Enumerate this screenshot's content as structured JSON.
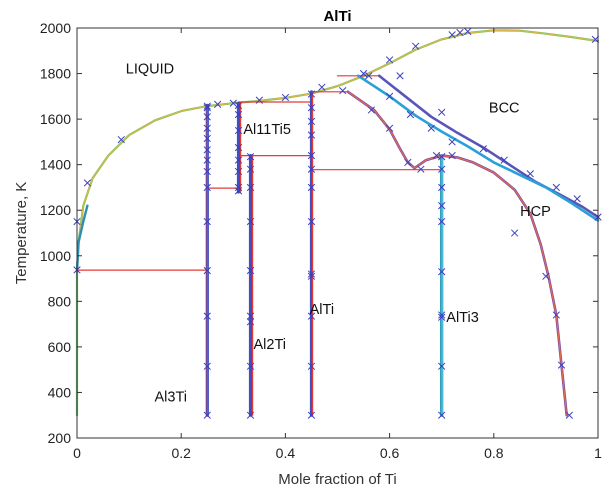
{
  "chart_data": {
    "type": "line",
    "title": "AlTi",
    "xlabel": "Mole fraction of Ti",
    "ylabel": "Temperature, K",
    "xlim": [
      0,
      1
    ],
    "ylim": [
      200,
      2000
    ],
    "xticks": [
      "0",
      "0.2",
      "0.4",
      "0.6",
      "0.8",
      "1"
    ],
    "yticks": [
      "200",
      "400",
      "600",
      "800",
      "1000",
      "1200",
      "1400",
      "1600",
      "1800",
      "2000"
    ],
    "grid": false,
    "region_labels": [
      {
        "text": "LIQUID",
        "x": 0.14,
        "y": 1800
      },
      {
        "text": "BCC",
        "x": 0.82,
        "y": 1630
      },
      {
        "text": "HCP",
        "x": 0.88,
        "y": 1175
      },
      {
        "text": "AlTi3",
        "x": 0.74,
        "y": 710
      },
      {
        "text": "AlTi",
        "x": 0.47,
        "y": 745
      },
      {
        "text": "Al2Ti",
        "x": 0.37,
        "y": 590
      },
      {
        "text": "Al3Ti",
        "x": 0.18,
        "y": 360
      },
      {
        "text": "Al11Ti5",
        "x": 0.365,
        "y": 1535
      }
    ],
    "series": [
      {
        "color": "#7dbf5a",
        "width": 2.2,
        "points": [
          [
            0.0,
            933
          ],
          [
            0.003,
            1060
          ],
          [
            0.012,
            1220
          ],
          [
            0.03,
            1340
          ],
          [
            0.06,
            1440
          ],
          [
            0.1,
            1530
          ],
          [
            0.15,
            1595
          ],
          [
            0.2,
            1635
          ],
          [
            0.25,
            1657
          ],
          [
            0.3,
            1670
          ],
          [
            0.35,
            1680
          ],
          [
            0.4,
            1693
          ],
          [
            0.45,
            1712
          ],
          [
            0.5,
            1745
          ],
          [
            0.55,
            1790
          ],
          [
            0.6,
            1845
          ],
          [
            0.65,
            1905
          ],
          [
            0.7,
            1950
          ],
          [
            0.75,
            1978
          ],
          [
            0.8,
            1990
          ],
          [
            0.85,
            1988
          ],
          [
            0.9,
            1975
          ],
          [
            0.95,
            1960
          ],
          [
            1.0,
            1943
          ]
        ]
      },
      {
        "color": "#d8b84a",
        "width": 1.2,
        "points": [
          [
            0.0,
            933
          ],
          [
            0.003,
            1060
          ],
          [
            0.012,
            1220
          ],
          [
            0.03,
            1340
          ],
          [
            0.06,
            1440
          ],
          [
            0.1,
            1530
          ],
          [
            0.15,
            1595
          ],
          [
            0.2,
            1635
          ],
          [
            0.25,
            1657
          ],
          [
            0.3,
            1670
          ],
          [
            0.35,
            1680
          ],
          [
            0.4,
            1693
          ],
          [
            0.45,
            1712
          ],
          [
            0.5,
            1745
          ],
          [
            0.55,
            1790
          ],
          [
            0.6,
            1845
          ],
          [
            0.65,
            1905
          ],
          [
            0.7,
            1950
          ],
          [
            0.75,
            1978
          ],
          [
            0.8,
            1990
          ],
          [
            0.85,
            1988
          ],
          [
            0.9,
            1975
          ],
          [
            0.95,
            1960
          ],
          [
            1.0,
            1943
          ]
        ]
      },
      {
        "color": "#6cc070",
        "width": 2.2,
        "points": [
          [
            0.0,
            300
          ],
          [
            0.0,
            933
          ]
        ]
      },
      {
        "color": "#2e8fb0",
        "width": 2.4,
        "points": [
          [
            0.0,
            930
          ],
          [
            0.003,
            1060
          ],
          [
            0.012,
            1150
          ],
          [
            0.02,
            1220
          ]
        ]
      },
      {
        "color": "#e53935",
        "width": 1.2,
        "points": [
          [
            0.0,
            937
          ],
          [
            0.25,
            937
          ]
        ]
      },
      {
        "color": "#e53935",
        "width": 1.2,
        "points": [
          [
            0.25,
            1297
          ],
          [
            0.31,
            1297
          ]
        ]
      },
      {
        "color": "#e53935",
        "width": 1.2,
        "points": [
          [
            0.312,
            1440
          ],
          [
            0.45,
            1440
          ]
        ]
      },
      {
        "color": "#e53935",
        "width": 1.2,
        "points": [
          [
            0.31,
            1675
          ],
          [
            0.45,
            1675
          ]
        ]
      },
      {
        "color": "#e53935",
        "width": 1.2,
        "points": [
          [
            0.45,
            1720
          ],
          [
            0.52,
            1720
          ]
        ]
      },
      {
        "color": "#e53935",
        "width": 1.2,
        "points": [
          [
            0.45,
            1378
          ],
          [
            0.7,
            1378
          ]
        ]
      },
      {
        "color": "#e53935",
        "width": 1.2,
        "points": [
          [
            0.5,
            1790
          ],
          [
            0.58,
            1790
          ]
        ]
      },
      {
        "color": "#3f4fbf",
        "width": 3.2,
        "points": [
          [
            0.25,
            300
          ],
          [
            0.25,
            1660
          ]
        ]
      },
      {
        "color": "#e53935",
        "width": 1.2,
        "points": [
          [
            0.25,
            300
          ],
          [
            0.25,
            1660
          ]
        ]
      },
      {
        "color": "#3f4fbf",
        "width": 3.2,
        "points": [
          [
            0.31,
            1280
          ],
          [
            0.31,
            1670
          ]
        ]
      },
      {
        "color": "#e53935",
        "width": 1.2,
        "points": [
          [
            0.314,
            1280
          ],
          [
            0.314,
            1670
          ]
        ]
      },
      {
        "color": "#3f4fbf",
        "width": 3.2,
        "points": [
          [
            0.333,
            300
          ],
          [
            0.333,
            1440
          ]
        ]
      },
      {
        "color": "#e53935",
        "width": 1.2,
        "points": [
          [
            0.337,
            300
          ],
          [
            0.337,
            1440
          ]
        ]
      },
      {
        "color": "#3f4fbf",
        "width": 3.2,
        "points": [
          [
            0.45,
            300
          ],
          [
            0.45,
            1720
          ]
        ]
      },
      {
        "color": "#e53935",
        "width": 1.2,
        "points": [
          [
            0.452,
            300
          ],
          [
            0.452,
            1720
          ]
        ]
      },
      {
        "color": "#4fb8d4",
        "width": 3.4,
        "points": [
          [
            0.7,
            300
          ],
          [
            0.7,
            1438
          ]
        ]
      },
      {
        "color": "#2a9db8",
        "width": 1.2,
        "points": [
          [
            0.698,
            300
          ],
          [
            0.698,
            1438
          ]
        ]
      },
      {
        "color": "#7a4fa6",
        "width": 2.6,
        "points": [
          [
            0.52,
            1720
          ],
          [
            0.57,
            1640
          ],
          [
            0.6,
            1555
          ],
          [
            0.62,
            1470
          ],
          [
            0.635,
            1410
          ],
          [
            0.648,
            1385
          ]
        ]
      },
      {
        "color": "#7a4fa6",
        "width": 2.6,
        "points": [
          [
            0.648,
            1385
          ],
          [
            0.67,
            1420
          ],
          [
            0.7,
            1440
          ],
          [
            0.73,
            1432
          ],
          [
            0.76,
            1410
          ],
          [
            0.8,
            1365
          ],
          [
            0.84,
            1290
          ],
          [
            0.87,
            1185
          ],
          [
            0.89,
            1050
          ],
          [
            0.905,
            910
          ],
          [
            0.92,
            740
          ],
          [
            0.93,
            520
          ],
          [
            0.94,
            300
          ]
        ]
      },
      {
        "color": "#e56a4f",
        "width": 1.2,
        "points": [
          [
            0.52,
            1720
          ],
          [
            0.57,
            1640
          ],
          [
            0.6,
            1555
          ],
          [
            0.62,
            1470
          ],
          [
            0.635,
            1410
          ],
          [
            0.648,
            1385
          ],
          [
            0.67,
            1420
          ],
          [
            0.7,
            1440
          ],
          [
            0.73,
            1432
          ],
          [
            0.76,
            1410
          ],
          [
            0.8,
            1365
          ],
          [
            0.84,
            1290
          ],
          [
            0.87,
            1185
          ],
          [
            0.89,
            1050
          ],
          [
            0.905,
            910
          ],
          [
            0.92,
            740
          ],
          [
            0.93,
            520
          ],
          [
            0.94,
            300
          ]
        ]
      },
      {
        "color": "#5a55b8",
        "width": 2.6,
        "points": [
          [
            0.58,
            1790
          ],
          [
            0.63,
            1700
          ],
          [
            0.68,
            1610
          ],
          [
            0.73,
            1540
          ],
          [
            0.78,
            1475
          ],
          [
            0.83,
            1400
          ],
          [
            0.88,
            1325
          ],
          [
            0.93,
            1265
          ],
          [
            0.97,
            1215
          ],
          [
            1.0,
            1170
          ]
        ]
      },
      {
        "color": "#2aa0d8",
        "width": 2.6,
        "points": [
          [
            0.54,
            1790
          ],
          [
            0.6,
            1700
          ],
          [
            0.65,
            1615
          ],
          [
            0.7,
            1545
          ],
          [
            0.75,
            1480
          ],
          [
            0.8,
            1410
          ],
          [
            0.85,
            1355
          ],
          [
            0.9,
            1300
          ],
          [
            0.95,
            1230
          ],
          [
            1.0,
            1155
          ]
        ]
      }
    ],
    "markers": [
      [
        0.0,
        938
      ],
      [
        0.0,
        1150
      ],
      [
        0.02,
        1320
      ],
      [
        0.085,
        1510
      ],
      [
        0.25,
        1657
      ],
      [
        0.27,
        1665
      ],
      [
        0.3,
        1670
      ],
      [
        0.35,
        1683
      ],
      [
        0.4,
        1695
      ],
      [
        0.47,
        1740
      ],
      [
        0.55,
        1800
      ],
      [
        0.6,
        1860
      ],
      [
        0.65,
        1920
      ],
      [
        0.72,
        1970
      ],
      [
        0.735,
        1980
      ],
      [
        0.75,
        1985
      ],
      [
        0.995,
        1950
      ],
      [
        0.25,
        300
      ],
      [
        0.25,
        515
      ],
      [
        0.25,
        735
      ],
      [
        0.25,
        935
      ],
      [
        0.25,
        1150
      ],
      [
        0.25,
        1300
      ],
      [
        0.25,
        1370
      ],
      [
        0.25,
        1420
      ],
      [
        0.25,
        1465
      ],
      [
        0.25,
        1515
      ],
      [
        0.25,
        1560
      ],
      [
        0.25,
        1610
      ],
      [
        0.25,
        1650
      ],
      [
        0.31,
        1285
      ],
      [
        0.31,
        1300
      ],
      [
        0.31,
        1370
      ],
      [
        0.31,
        1420
      ],
      [
        0.31,
        1475
      ],
      [
        0.31,
        1550
      ],
      [
        0.31,
        1620
      ],
      [
        0.31,
        1660
      ],
      [
        0.333,
        300
      ],
      [
        0.333,
        515
      ],
      [
        0.333,
        710
      ],
      [
        0.333,
        735
      ],
      [
        0.333,
        935
      ],
      [
        0.333,
        1150
      ],
      [
        0.333,
        1300
      ],
      [
        0.333,
        1380
      ],
      [
        0.333,
        1435
      ],
      [
        0.45,
        300
      ],
      [
        0.45,
        515
      ],
      [
        0.45,
        735
      ],
      [
        0.45,
        910
      ],
      [
        0.45,
        920
      ],
      [
        0.45,
        1150
      ],
      [
        0.45,
        1300
      ],
      [
        0.45,
        1380
      ],
      [
        0.45,
        1440
      ],
      [
        0.45,
        1530
      ],
      [
        0.45,
        1590
      ],
      [
        0.45,
        1650
      ],
      [
        0.45,
        1710
      ],
      [
        0.7,
        300
      ],
      [
        0.7,
        515
      ],
      [
        0.7,
        730
      ],
      [
        0.7,
        740
      ],
      [
        0.7,
        930
      ],
      [
        0.7,
        1150
      ],
      [
        0.7,
        1220
      ],
      [
        0.7,
        1300
      ],
      [
        0.7,
        1380
      ],
      [
        0.7,
        1435
      ],
      [
        0.51,
        1725
      ],
      [
        0.565,
        1640
      ],
      [
        0.6,
        1560
      ],
      [
        0.635,
        1410
      ],
      [
        0.66,
        1380
      ],
      [
        0.69,
        1440
      ],
      [
        0.72,
        1440
      ],
      [
        0.84,
        1100
      ],
      [
        0.9,
        910
      ],
      [
        0.92,
        740
      ],
      [
        0.93,
        520
      ],
      [
        0.945,
        300
      ],
      [
        0.56,
        1790
      ],
      [
        0.6,
        1700
      ],
      [
        0.64,
        1620
      ],
      [
        0.68,
        1560
      ],
      [
        0.72,
        1500
      ],
      [
        0.78,
        1470
      ],
      [
        0.82,
        1420
      ],
      [
        0.87,
        1360
      ],
      [
        0.92,
        1300
      ],
      [
        0.96,
        1250
      ],
      [
        1.0,
        1170
      ],
      [
        0.62,
        1790
      ],
      [
        0.7,
        1630
      ]
    ],
    "colors": {
      "marker": "#3b3fbf",
      "axis": "#333333"
    }
  }
}
